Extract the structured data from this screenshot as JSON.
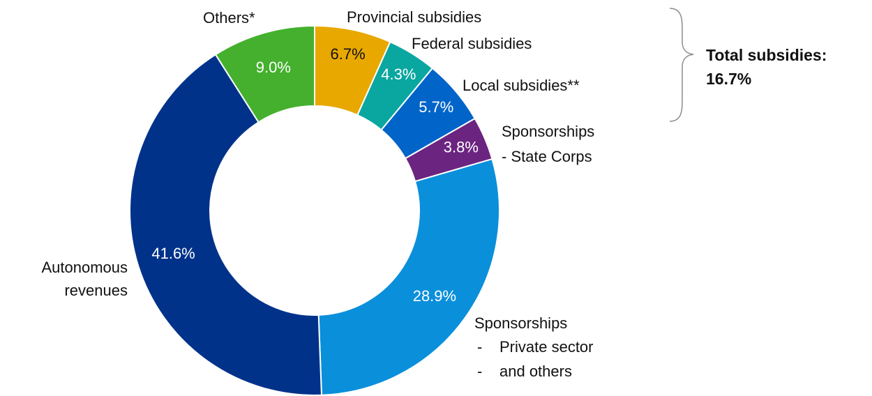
{
  "chart_data": {
    "type": "pie",
    "variant": "donut",
    "slices": [
      {
        "label": "Provincial subsidies",
        "value": 6.7,
        "value_label": "6.7%",
        "color": "#e8a800",
        "text_color": "#111111"
      },
      {
        "label": "Federal subsidies",
        "value": 4.3,
        "value_label": "4.3%",
        "color": "#0aa7a0",
        "text_color": "#ffffff"
      },
      {
        "label": "Local subsidies**",
        "value": 5.7,
        "value_label": "5.7%",
        "color": "#0064c8",
        "text_color": "#ffffff"
      },
      {
        "label": "Sponsorships - State Corps",
        "value": 3.8,
        "value_label": "3.8%",
        "color": "#6b2480",
        "text_color": "#ffffff"
      },
      {
        "label": "Sponsorships - Private sector - and others",
        "value": 28.9,
        "value_label": "28.9%",
        "color": "#0a8fdb",
        "text_color": "#ffffff"
      },
      {
        "label": "Autonomous revenues",
        "value": 41.6,
        "value_label": "41.6%",
        "color": "#00328a",
        "text_color": "#ffffff"
      },
      {
        "label": "Others*",
        "value": 9.0,
        "value_label": "9.0%",
        "color": "#44b02e",
        "text_color": "#ffffff"
      }
    ]
  },
  "labels": {
    "provincial": "Provincial subsidies",
    "federal": "Federal subsidies",
    "local": "Local subsidies**",
    "state_corps_1": "Sponsorships",
    "state_corps_2": "- State Corps",
    "private_1": "Sponsorships",
    "private_2": "-",
    "private_3": "Private sector",
    "private_4": "-",
    "private_5": "and others",
    "autonomous_1": "Autonomous",
    "autonomous_2": "revenues",
    "others": "Others*"
  },
  "annotation": {
    "line1": "Total subsidies:",
    "line2": "16.7%"
  }
}
